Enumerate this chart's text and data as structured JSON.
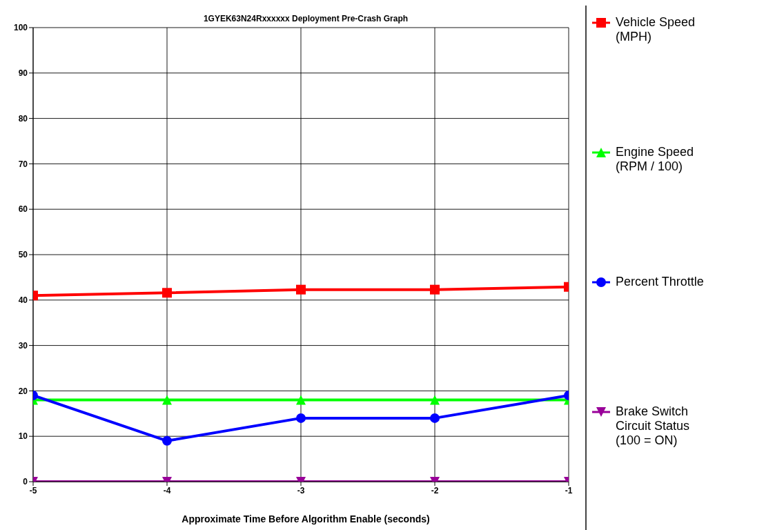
{
  "chart_data": {
    "type": "line",
    "title": "1GYEK63N24Rxxxxxx Deployment Pre-Crash Graph",
    "xlabel": "Approximate Time Before Algorithm Enable (seconds)",
    "x": [
      -5,
      -4,
      -3,
      -2,
      -1
    ],
    "xlim": [
      -5,
      -1
    ],
    "xticks": [
      -5,
      -4,
      -3,
      -2,
      -1
    ],
    "ylim": [
      0,
      100
    ],
    "yticks": [
      0,
      10,
      20,
      30,
      40,
      50,
      60,
      70,
      80,
      90,
      100
    ],
    "grid": true,
    "legend": "right",
    "line_style": "solid",
    "series": [
      {
        "name": "Vehicle Speed (MPH)",
        "color": "#ff0000",
        "marker": "square",
        "values": [
          41,
          41.6,
          42.3,
          42.3,
          42.9
        ]
      },
      {
        "name": "Engine Speed (RPM / 100)",
        "color": "#00ff00",
        "marker": "triangle",
        "values": [
          18,
          18,
          18,
          18,
          18
        ]
      },
      {
        "name": "Percent Throttle",
        "color": "#0000ff",
        "marker": "circle",
        "values": [
          19,
          9,
          14,
          14,
          19
        ]
      },
      {
        "name": "Brake Switch Circuit Status (100 = ON)",
        "color": "#990099",
        "marker": "triangle-down",
        "values": [
          0,
          0,
          0,
          0,
          0
        ]
      }
    ]
  }
}
